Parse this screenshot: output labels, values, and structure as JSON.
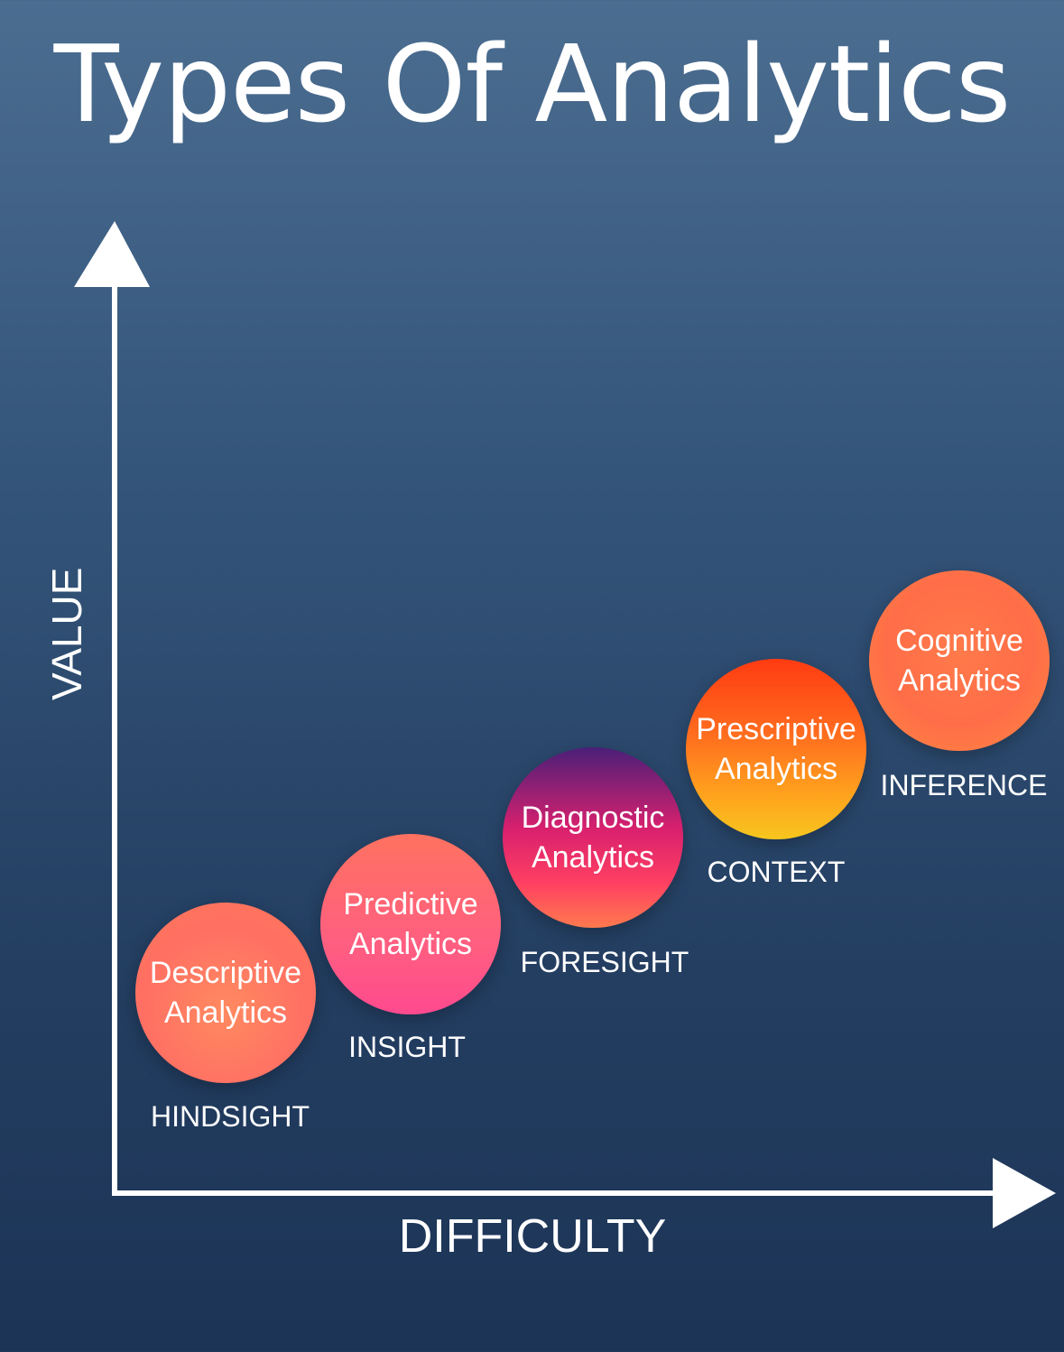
{
  "title": "Types Of Analytics",
  "axes": {
    "y_label": "VALUE",
    "x_label": "DIFFICULTY"
  },
  "stages": [
    {
      "line1": "Descriptive",
      "line2": "Analytics",
      "tag": "HINDSIGHT"
    },
    {
      "line1": "Predictive",
      "line2": "Analytics",
      "tag": "INSIGHT"
    },
    {
      "line1": "Diagnostic",
      "line2": "Analytics",
      "tag": "FORESIGHT"
    },
    {
      "line1": "Prescriptive",
      "line2": "Analytics",
      "tag": "CONTEXT"
    },
    {
      "line1": "Cognitive",
      "line2": "Analytics",
      "tag": "INFERENCE"
    }
  ],
  "colors": {
    "background_top": "#4b6d90",
    "background_bottom": "#1c3456",
    "axis": "#ffffff"
  }
}
